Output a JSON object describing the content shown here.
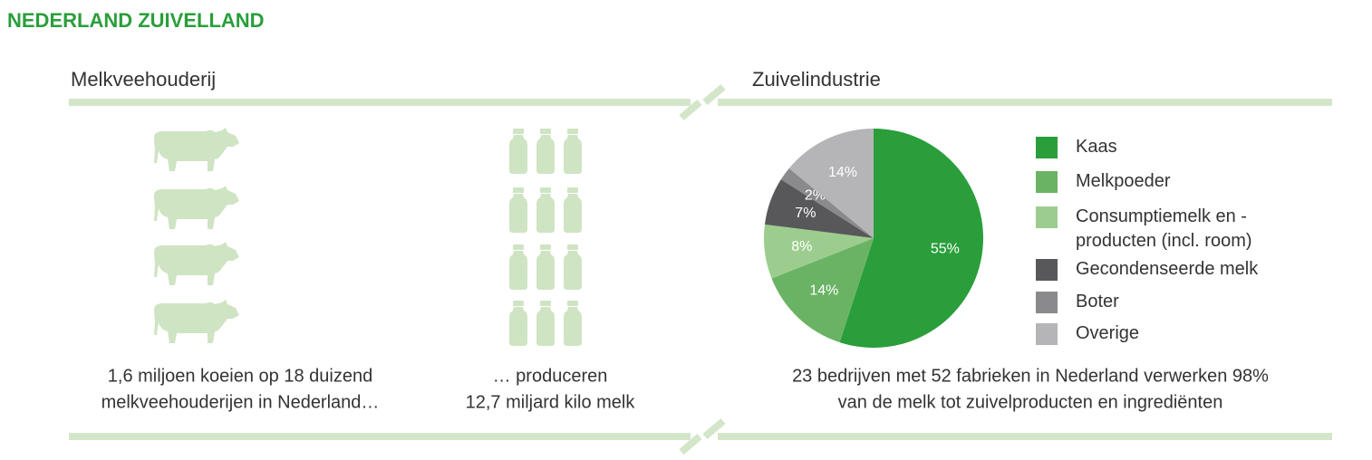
{
  "title": "NEDERLAND ZUIVELLAND",
  "farming": {
    "heading": "Melkveehouderij",
    "caption_cows": [
      "1,6 miljoen koeien op 18 duizend",
      "melkveehouderijen in Nederland…"
    ],
    "caption_milk": [
      "… produceren",
      "12,7 miljard kilo melk"
    ]
  },
  "industry": {
    "caption": [
      "23 bedrijven met 52 fabrieken in Nederland verwerken 98%",
      "van de melk tot zuivelproducten en ingrediënten"
    ]
  },
  "chart_data": {
    "type": "pie",
    "title": "Zuivelindustrie",
    "categories": [
      "Kaas",
      "Melkpoeder",
      "Consumptiemelk en -producten (incl. room)",
      "Gecondenseerde melk",
      "Boter",
      "Overige"
    ],
    "values": [
      55,
      14,
      8,
      7,
      2,
      14
    ],
    "value_labels": [
      "55%",
      "14%",
      "8%",
      "7%",
      "2%",
      "14%"
    ],
    "colors": [
      "#2a9e3b",
      "#6ab364",
      "#9dcd8e",
      "#58585a",
      "#8a8a8c",
      "#b5b5b7"
    ]
  }
}
